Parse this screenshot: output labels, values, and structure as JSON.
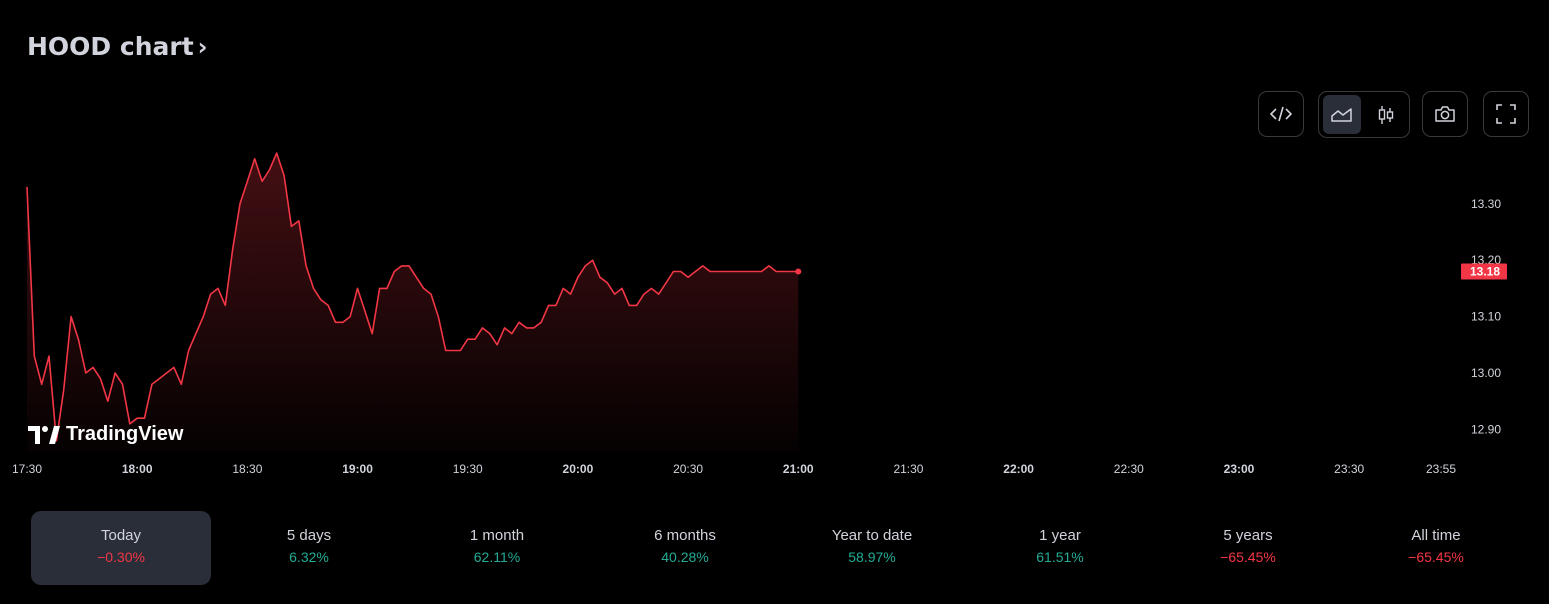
{
  "header": {
    "title": "HOOD chart",
    "chevron_icon": "chevron-right-icon"
  },
  "toolbar": {
    "embed_icon": "code-icon",
    "line_chart_icon": "area-chart-icon",
    "candles_icon": "candlestick-icon",
    "snapshot_icon": "camera-icon",
    "fullscreen_icon": "fullscreen-icon",
    "active_style": "area"
  },
  "branding": {
    "logo_text": "TradingView"
  },
  "colors": {
    "line": "#f23645",
    "positive": "#22ab94",
    "negative": "#f23645",
    "background": "#000000",
    "active_tab": "#2a2e39"
  },
  "chart_data": {
    "type": "area",
    "symbol": "HOOD",
    "x_tick_labels": [
      "17:30",
      "18:00",
      "18:30",
      "19:00",
      "19:30",
      "20:00",
      "20:30",
      "21:00",
      "21:30",
      "22:00",
      "22:30",
      "23:00",
      "23:30",
      "23:55"
    ],
    "bold_x_ticks": [
      "18:00",
      "19:00",
      "20:00",
      "21:00",
      "22:00",
      "23:00"
    ],
    "y_tick_labels": [
      "13.30",
      "13.20",
      "13.10",
      "13.00",
      "12.90"
    ],
    "y_range": [
      12.86,
      13.36
    ],
    "last_price_label": "13.18",
    "last_price": 13.18,
    "grid": false,
    "series": [
      {
        "x": [
          "17:30",
          "17:32",
          "17:34",
          "17:36",
          "17:38",
          "17:40",
          "17:42",
          "17:44",
          "17:46",
          "17:48",
          "17:50",
          "17:52",
          "17:54",
          "17:56",
          "17:58",
          "18:00",
          "18:02",
          "18:04",
          "18:06",
          "18:08",
          "18:10",
          "18:12",
          "18:14",
          "18:16",
          "18:18",
          "18:20",
          "18:22",
          "18:24",
          "18:26",
          "18:28",
          "18:30",
          "18:32",
          "18:34",
          "18:36",
          "18:38",
          "18:40",
          "18:42",
          "18:44",
          "18:46",
          "18:48",
          "18:50",
          "18:52",
          "18:54",
          "18:56",
          "18:58",
          "19:00",
          "19:02",
          "19:04",
          "19:06",
          "19:08",
          "19:10",
          "19:12",
          "19:14",
          "19:16",
          "19:18",
          "19:20",
          "19:22",
          "19:24",
          "19:26",
          "19:28",
          "19:30",
          "19:32",
          "19:34",
          "19:36",
          "19:38",
          "19:40",
          "19:42",
          "19:44",
          "19:46",
          "19:48",
          "19:50",
          "19:52",
          "19:54",
          "19:56",
          "19:58",
          "20:00",
          "20:02",
          "20:04",
          "20:06",
          "20:08",
          "20:10",
          "20:12",
          "20:14",
          "20:16",
          "20:18",
          "20:20",
          "20:22",
          "20:24",
          "20:26",
          "20:28",
          "20:30",
          "20:32",
          "20:34",
          "20:36",
          "20:38",
          "20:40",
          "20:42",
          "20:44",
          "20:46",
          "20:48",
          "20:50",
          "20:52",
          "20:54",
          "20:56",
          "20:58",
          "21:00"
        ],
        "y": [
          13.33,
          13.03,
          12.98,
          13.03,
          12.88,
          12.97,
          13.1,
          13.06,
          13.0,
          13.01,
          12.99,
          12.95,
          13.0,
          12.98,
          12.91,
          12.92,
          12.92,
          12.98,
          12.99,
          13.0,
          13.01,
          12.98,
          13.04,
          13.07,
          13.1,
          13.14,
          13.15,
          13.12,
          13.22,
          13.3,
          13.34,
          13.38,
          13.34,
          13.36,
          13.39,
          13.35,
          13.26,
          13.27,
          13.19,
          13.15,
          13.13,
          13.12,
          13.09,
          13.09,
          13.1,
          13.15,
          13.11,
          13.07,
          13.15,
          13.15,
          13.18,
          13.19,
          13.19,
          13.17,
          13.15,
          13.14,
          13.1,
          13.04,
          13.04,
          13.04,
          13.06,
          13.06,
          13.08,
          13.07,
          13.05,
          13.08,
          13.07,
          13.09,
          13.08,
          13.08,
          13.09,
          13.12,
          13.12,
          13.15,
          13.14,
          13.17,
          13.19,
          13.2,
          13.17,
          13.16,
          13.14,
          13.15,
          13.12,
          13.12,
          13.14,
          13.15,
          13.14,
          13.16,
          13.18,
          13.18,
          13.17,
          13.18,
          13.19,
          13.18,
          13.18,
          13.18,
          13.18,
          13.18,
          13.18,
          13.18,
          13.18,
          13.19,
          13.18,
          13.18,
          13.18,
          13.18
        ]
      }
    ]
  },
  "periods": [
    {
      "label": "Today",
      "value": "−0.30%",
      "sign": "neg",
      "active": true
    },
    {
      "label": "5 days",
      "value": "6.32%",
      "sign": "pos",
      "active": false
    },
    {
      "label": "1 month",
      "value": "62.11%",
      "sign": "pos",
      "active": false
    },
    {
      "label": "6 months",
      "value": "40.28%",
      "sign": "pos",
      "active": false
    },
    {
      "label": "Year to date",
      "value": "58.97%",
      "sign": "pos",
      "active": false
    },
    {
      "label": "1 year",
      "value": "61.51%",
      "sign": "pos",
      "active": false
    },
    {
      "label": "5 years",
      "value": "−65.45%",
      "sign": "neg",
      "active": false
    },
    {
      "label": "All time",
      "value": "−65.45%",
      "sign": "neg",
      "active": false
    }
  ]
}
